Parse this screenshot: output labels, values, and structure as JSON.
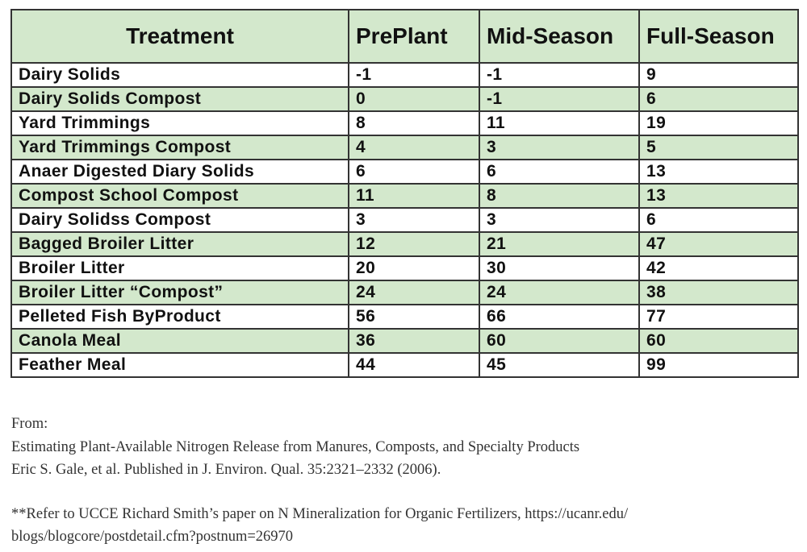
{
  "table": {
    "headers": [
      "Treatment",
      "PrePlant",
      "Mid-Season",
      "Full-Season"
    ],
    "rows": [
      [
        "Dairy Solids",
        "-1",
        "-1",
        "9"
      ],
      [
        "Dairy Solids Compost",
        "0",
        "-1",
        "6"
      ],
      [
        "Yard Trimmings",
        "8",
        "11",
        "19"
      ],
      [
        "Yard Trimmings Compost",
        "4",
        "3",
        "5"
      ],
      [
        "Anaer Digested Diary Solids",
        "6",
        "6",
        "13"
      ],
      [
        "Compost School Compost",
        "11",
        "8",
        "13"
      ],
      [
        "Dairy Solidss Compost",
        "3",
        "3",
        "6"
      ],
      [
        "Bagged Broiler Litter",
        "12",
        "21",
        "47"
      ],
      [
        "Broiler Litter",
        "20",
        "30",
        "42"
      ],
      [
        "Broiler Litter “Compost”",
        "24",
        "24",
        "38"
      ],
      [
        "Pelleted Fish ByProduct",
        "56",
        "66",
        "77"
      ],
      [
        "Canola Meal",
        "36",
        "60",
        "60"
      ],
      [
        "Feather Meal",
        "44",
        "45",
        "99"
      ]
    ],
    "colors": {
      "header_bg": "#d3e8cc",
      "band_bg": "#d3e8cc",
      "border": "#333333"
    }
  },
  "source": {
    "from_label": "From:",
    "paper_title": "Estimating Plant-Available Nitrogen Release from Manures, Composts, and Specialty Products",
    "citation": "Eric S. Gale, et al. Published in J. Environ. Qual. 35:2321–2332 (2006).",
    "note_line1": "**Refer to UCCE Richard Smith’s paper on N Mineralization for Organic Fertilizers, https://ucanr.edu/",
    "note_line2": "blogs/blogcore/postdetail.cfm?postnum=26970"
  }
}
